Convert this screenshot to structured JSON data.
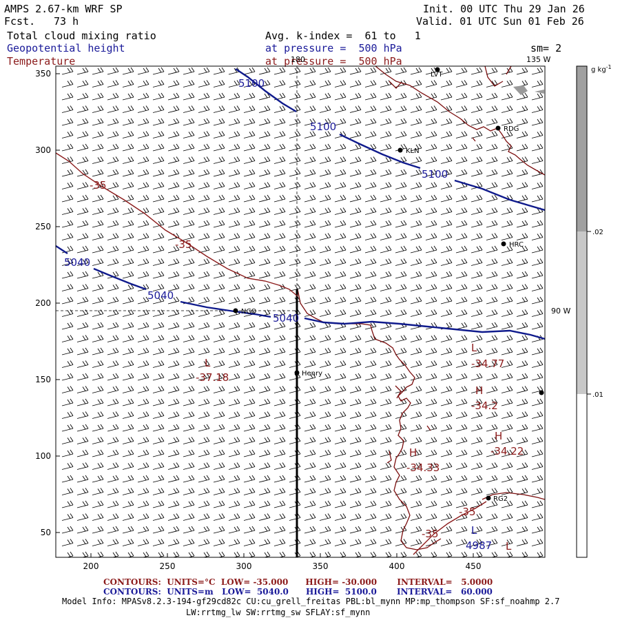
{
  "header": {
    "model": "AMPS 2.67-km WRF SP",
    "fcst_label": "Fcst.",
    "fcst_value": "73 h",
    "init": "Init. 00 UTC Thu 29 Jan 26",
    "valid": "Valid. 01 UTC Sun 01 Feb 26",
    "field1": "Total cloud mixing ratio",
    "field2": "Geopotential height",
    "field3": "Temperature",
    "avg": "Avg. k-index =  61 to   1",
    "pressure1": "at pressure =  500 hPa",
    "pressure2": "at pressure =  500 hPa",
    "smoothing": "sm= 2"
  },
  "map": {
    "x_ticks": [
      "200",
      "250",
      "300",
      "350",
      "400",
      "450"
    ],
    "y_ticks": [
      "350",
      "300",
      "250",
      "200",
      "150",
      "100",
      "50"
    ],
    "lon_labels": [
      "180",
      "135 W",
      "90 W"
    ],
    "stations": [
      "LVT",
      "RDG",
      "KLN",
      "HRC",
      "NCO",
      "Henry",
      "RG2"
    ],
    "height_labels": [
      "5100",
      "5100",
      "5100",
      "5040",
      "5040",
      "5040",
      "4987"
    ],
    "temp_labels": [
      "-35",
      "-35",
      "-35",
      "-35"
    ],
    "extrema": [
      {
        "type": "L",
        "value": "-37.18"
      },
      {
        "type": "L",
        "value": "-34.77"
      },
      {
        "type": "H",
        "value": "-34.2"
      },
      {
        "type": "H",
        "value": "-34.22"
      },
      {
        "type": "H",
        "value": "-34.33"
      },
      {
        "type": "L",
        "value": ""
      }
    ]
  },
  "colorbar": {
    "units": "g kg",
    "units_exp": "-1",
    "labels": [
      ".02",
      ".01"
    ]
  },
  "footer": {
    "line1": "CONTOURS:  UNITS=°C  LOW= -35.000      HIGH= -30.000       INTERVAL=   5.0000",
    "line2": "CONTOURS:  UNITS=m   LOW=  5040.0      HIGH=  5100.0       INTERVAL=   60.000",
    "model_info_1": "Model Info: MPASv8.2.3-194-gf29cd82c CU:cu_grell_freitas PBL:bl_mynn MP:mp_thompson SF:sf_noahmp 2.7",
    "model_info_2": "LW:rrtmg_lw SW:rrtmg_sw SFLAY:sf_mynn"
  },
  "colors": {
    "height": "#1a1a99",
    "temperature": "#8b1a1a",
    "colorbar_fill": "#a0a0a0"
  }
}
